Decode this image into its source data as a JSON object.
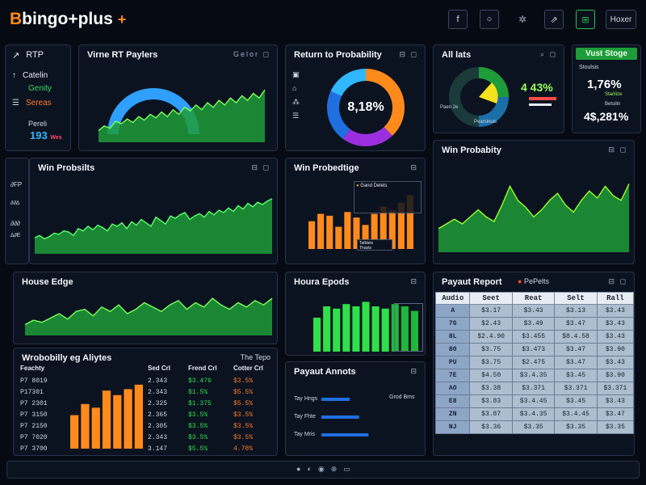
{
  "header": {
    "logo_text": "bingo+plus",
    "logo_mark": "B",
    "logo_suffix": "+",
    "buttons": [
      {
        "icon": "facebook-icon",
        "glyph": "f"
      },
      {
        "icon": "circle-icon",
        "glyph": "○"
      },
      {
        "icon": "spinner-icon",
        "glyph": "✲"
      },
      {
        "icon": "share-icon",
        "glyph": "⇗"
      },
      {
        "icon": "grid-icon",
        "glyph": "⊞"
      }
    ],
    "action_label": "Hoxer"
  },
  "sidebar": {
    "items": [
      {
        "icon": "arrow-icon",
        "glyph": "↗",
        "label": "RTP",
        "color": "#ffffff"
      },
      {
        "icon": "up-arrow-icon",
        "glyph": "↑",
        "label": "Catelin",
        "color": "#dfe6f0"
      },
      {
        "icon": "",
        "glyph": "",
        "label": "Genity",
        "color": "#38d860"
      },
      {
        "icon": "list-icon",
        "glyph": "☰",
        "label": "Sereas",
        "color": "#ff7a2a"
      },
      {
        "icon": "",
        "glyph": "",
        "label": "Pereli",
        "color": "#cfd8e6"
      }
    ],
    "value": "193",
    "value_suffix": "Wes"
  },
  "panels": {
    "rtp_players": {
      "title": "Virne RT Paylers",
      "actions": "Gelor ◻"
    },
    "rtp_prob": {
      "title": "Return to Probability",
      "donut_label": "8,18%"
    },
    "all_lats": {
      "title": "All lats",
      "pct": "4 43%",
      "mini_label_1": "Paen 2e",
      "mini_label_2": "Pearsinuis"
    },
    "vust": {
      "title": "Vust Stoge",
      "label_1": "Stoulsis",
      "value_1": "1,76%",
      "label_2": "Starilize",
      "value_2": "4$,281%",
      "label_3": "Betsilin"
    },
    "win_prob_1": {
      "title": "Win Probsilts"
    },
    "win_prob_edge": {
      "title": "Win Probedtige",
      "legend_1": "Gand Delels",
      "legend_2": "Tatbleis",
      "legend_3": "Thasts"
    },
    "win_prob_2": {
      "title": "Win Probabity"
    },
    "house_edge": {
      "title": "House Edge"
    },
    "house_epods": {
      "title": "Houra Epods"
    },
    "payout_report": {
      "title": "Payaut Report",
      "tag": "PePelts"
    },
    "analytics": {
      "title": "Wrobobilly eg Aliytes",
      "tag": "The Tepo"
    },
    "payout_annots": {
      "title": "Payaut Annots",
      "label_1": "Tay Hngs",
      "label_2": "Tay Fhte",
      "label_3": "Tay Mris",
      "note": "Grod Bms"
    }
  },
  "left_axis": {
    "labels": [
      "∂FP",
      "∂∂∆",
      "∂∂∂",
      "∆∂E"
    ]
  },
  "payout_table": {
    "headers": [
      "Audio",
      "Seet",
      "Reat",
      "Selt",
      "Rall"
    ],
    "rows": [
      [
        "A",
        "$3.17",
        "$3.43",
        "$3.13",
        "$3.43"
      ],
      [
        "7G",
        "$2.43",
        "$3.49",
        "$3.47",
        "$3.43"
      ],
      [
        "8L",
        "$2.4.90",
        "$3.455",
        "$8.4.58",
        "$3.43"
      ],
      [
        "80",
        "$3.75",
        "$3.473",
        "$3.47",
        "$3.90"
      ],
      [
        "PU",
        "$3.75",
        "$2.475",
        "$3.47",
        "$3.43"
      ],
      [
        "7E",
        "$4.50",
        "$3.4.35",
        "$3.45",
        "$3.90"
      ],
      [
        "AO",
        "$3.38",
        "$3.371",
        "$3.371",
        "$3.371"
      ],
      [
        "E8",
        "$3.83",
        "$3.4.45",
        "$3.45",
        "$3.43"
      ],
      [
        "ZN",
        "$3.87",
        "$3.4.35",
        "$3.4.45",
        "$3.47"
      ],
      [
        "NJ",
        "$3.36",
        "$3.35",
        "$3.35",
        "$3.35"
      ]
    ]
  },
  "analytics_table": {
    "headers": [
      "Feachty",
      "Sed Crl",
      "Frend Crl",
      "Cotter Crl"
    ],
    "rows": [
      [
        "P7 8019",
        "2.343",
        "$3.476",
        "$3.5%"
      ],
      [
        "P17301",
        "2.343",
        "$1.5%",
        "$5.5%"
      ],
      [
        "P7 2301",
        "2.325",
        "$1.375",
        "$5.5%"
      ],
      [
        "P7 3150",
        "2.365",
        "$3.5%",
        "$3.5%"
      ],
      [
        "P7 2150",
        "2.305",
        "$3.5%",
        "$3.5%"
      ],
      [
        "P7 7020",
        "2.343",
        "$3.5%",
        "$3.5%"
      ],
      [
        "P7 3700",
        "3.147",
        "$5.5%",
        "4.78%"
      ]
    ]
  },
  "chart_data": [
    {
      "type": "area",
      "name": "win-prob-1",
      "y": [
        14,
        16,
        13,
        15,
        18,
        17,
        20,
        19,
        16,
        22,
        20,
        24,
        21,
        25,
        23,
        20,
        26,
        24,
        27,
        22,
        28,
        25,
        30,
        27,
        24,
        32,
        29,
        26,
        33,
        31,
        34,
        36,
        30,
        33,
        35,
        32,
        37,
        34,
        38,
        36,
        40,
        37,
        42,
        39,
        44,
        41,
        45,
        43,
        46,
        48
      ],
      "ylim": [
        0,
        55
      ]
    },
    {
      "type": "area",
      "name": "house-edge",
      "y": [
        10,
        14,
        12,
        16,
        20,
        15,
        22,
        24,
        18,
        26,
        22,
        28,
        20,
        24,
        30,
        26,
        22,
        28,
        32,
        24,
        30,
        26,
        34,
        28,
        24,
        30,
        26,
        32,
        28,
        34
      ],
      "ylim": [
        0,
        40
      ]
    },
    {
      "type": "area",
      "name": "win-prob-2",
      "y": [
        20,
        24,
        28,
        24,
        30,
        36,
        30,
        26,
        40,
        56,
        44,
        38,
        30,
        36,
        44,
        50,
        40,
        34,
        44,
        52,
        46,
        56,
        48,
        44,
        58
      ],
      "ylim": [
        0,
        70
      ]
    },
    {
      "type": "area",
      "name": "rtp-players",
      "y": [
        10,
        14,
        12,
        18,
        16,
        20,
        17,
        22,
        19,
        24,
        21,
        26,
        22,
        28,
        24,
        30,
        27,
        32,
        28,
        34,
        30,
        36,
        32,
        38,
        34,
        40,
        36,
        42,
        38,
        45
      ],
      "ylim": [
        0,
        50
      ]
    },
    {
      "type": "bar",
      "name": "win-prob-edge",
      "values": [
        30,
        38,
        36,
        24,
        40,
        34,
        26,
        38,
        46,
        42,
        50,
        58
      ],
      "ylim": [
        0,
        70
      ]
    },
    {
      "type": "bar",
      "name": "house-epods",
      "values": [
        30,
        40,
        38,
        42,
        40,
        44,
        40,
        38,
        42,
        40,
        36
      ],
      "ylim": [
        0,
        50
      ]
    },
    {
      "type": "bar",
      "name": "analytics",
      "values": [
        45,
        60,
        55,
        78,
        72,
        80,
        86
      ],
      "ylim": [
        0,
        100
      ]
    },
    {
      "type": "bar",
      "name": "payout-annots",
      "values": [
        30,
        40,
        50
      ],
      "ylim": [
        0,
        60
      ]
    },
    {
      "type": "pie",
      "name": "rtp-donut",
      "values": [
        38,
        22,
        22,
        18
      ],
      "labels": [
        "",
        "",
        "",
        ""
      ],
      "colors": [
        "#ff8a1c",
        "#9b2fe0",
        "#1f6fe0",
        "#2fb8ff"
      ]
    }
  ],
  "footer": {
    "icons": [
      "●",
      "◐",
      "◉",
      "⊕",
      "▭"
    ]
  }
}
